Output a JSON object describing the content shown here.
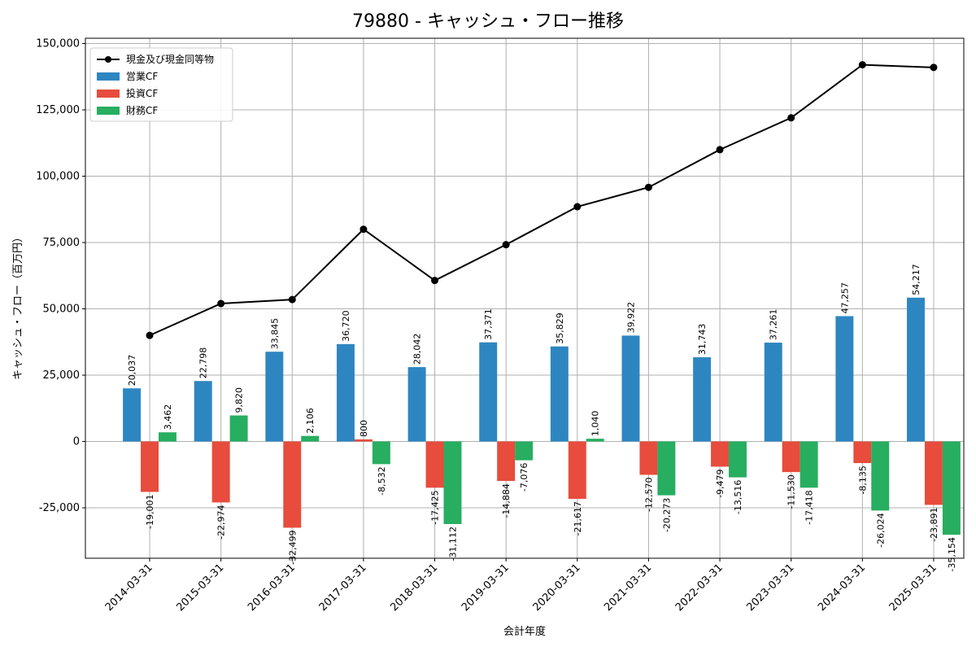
{
  "chart_data": {
    "type": "bar",
    "title": "79880 - キャッシュ・フロー推移",
    "xlabel": "会計年度",
    "ylabel": "キャッシュ・フロー（百万円）",
    "categories": [
      "2014-03-31",
      "2015-03-31",
      "2016-03-31",
      "2017-03-31",
      "2018-03-31",
      "2019-03-31",
      "2020-03-31",
      "2021-03-31",
      "2022-03-31",
      "2023-03-31",
      "2024-03-31",
      "2025-03-31"
    ],
    "ylim": [
      -44000,
      152000
    ],
    "yticks": [
      -25000,
      0,
      25000,
      50000,
      75000,
      100000,
      125000,
      150000
    ],
    "ytick_labels": [
      "-25,000",
      "0",
      "25,000",
      "50,000",
      "75,000",
      "100,000",
      "125,000",
      "150,000"
    ],
    "grid": true,
    "legend_position": "top-left",
    "series": [
      {
        "name": "営業CF",
        "kind": "bar",
        "color": "#2e86c1",
        "values": [
          20037,
          22798,
          33845,
          36720,
          28042,
          37371,
          35829,
          39922,
          31743,
          37261,
          47257,
          54217
        ],
        "labels": [
          "20,037",
          "22,798",
          "33,845",
          "36,720",
          "28,042",
          "37,371",
          "35,829",
          "39,922",
          "31,743",
          "37,261",
          "47,257",
          "54,217"
        ]
      },
      {
        "name": "投資CF",
        "kind": "bar",
        "color": "#e74c3c",
        "values": [
          -19001,
          -22974,
          -32499,
          800,
          -17425,
          -14884,
          -21617,
          -12570,
          -9479,
          -11530,
          -8135,
          -23891
        ],
        "labels": [
          "-19,001",
          "-22,974",
          "-32,499",
          "800",
          "-17,425",
          "-14,884",
          "-21,617",
          "-12,570",
          "-9,479",
          "-11,530",
          "-8,135",
          "-23,891"
        ]
      },
      {
        "name": "財務CF",
        "kind": "bar",
        "color": "#27ae60",
        "values": [
          3462,
          9820,
          2106,
          -8532,
          -31112,
          -7076,
          1040,
          -20273,
          -13516,
          -17418,
          -26024,
          -35154
        ],
        "labels": [
          "3,462",
          "9,820",
          "2,106",
          "-8,532",
          "-31,112",
          "-7,076",
          "1,040",
          "-20,273",
          "-13,516",
          "-17,418",
          "-26,024",
          "-35,154"
        ]
      },
      {
        "name": "現金及び現金同等物",
        "kind": "line",
        "color": "#000000",
        "values": [
          40000,
          52000,
          53500,
          80000,
          60700,
          74200,
          88500,
          95800,
          110000,
          122000,
          142000,
          141000
        ]
      }
    ]
  }
}
